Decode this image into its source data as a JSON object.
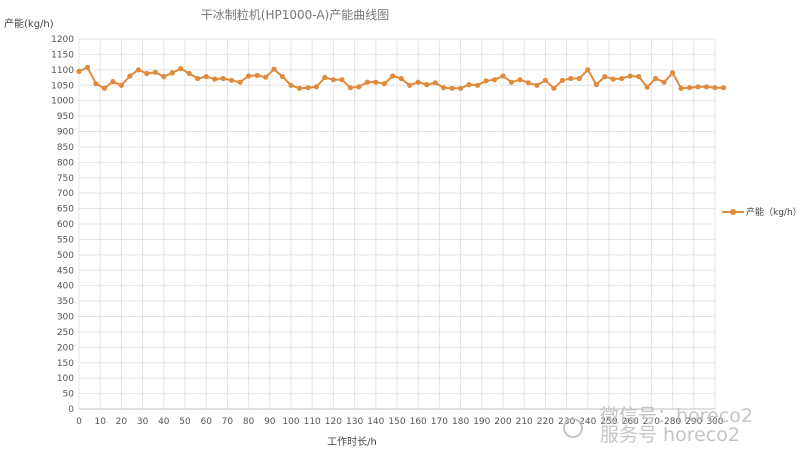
{
  "chart_data": {
    "type": "line",
    "title": "干冰制粒机(HP1000-A)产能曲线图",
    "ylabel": "产能(kg/h)",
    "xlabel": "工作时长/h",
    "xlim": [
      0,
      300
    ],
    "ylim": [
      0,
      1200
    ],
    "x_ticks": [
      0,
      10,
      20,
      30,
      40,
      50,
      60,
      70,
      80,
      90,
      100,
      110,
      120,
      130,
      140,
      150,
      160,
      170,
      180,
      190,
      200,
      210,
      220,
      230,
      240,
      250,
      260,
      270,
      280,
      290,
      300
    ],
    "y_ticks": [
      0,
      50,
      100,
      150,
      200,
      250,
      300,
      350,
      400,
      450,
      500,
      550,
      600,
      650,
      700,
      750,
      800,
      850,
      900,
      950,
      1000,
      1050,
      1100,
      1150,
      1200
    ],
    "grid": true,
    "legend_position": "right",
    "series": [
      {
        "name": "产能（kg/h）",
        "color": "#e08a3c",
        "x": [
          0,
          4,
          8,
          12,
          16,
          20,
          24,
          28,
          32,
          36,
          40,
          44,
          48,
          52,
          56,
          60,
          64,
          68,
          72,
          76,
          80,
          84,
          88,
          92,
          96,
          100,
          104,
          108,
          112,
          116,
          120,
          124,
          128,
          132,
          136,
          140,
          144,
          148,
          152,
          156,
          160,
          164,
          168,
          172,
          176,
          180,
          184,
          188,
          192,
          196,
          200,
          204,
          208,
          212,
          216,
          220,
          224,
          228,
          232,
          236,
          240,
          244,
          248,
          252,
          256,
          260,
          264,
          268,
          272,
          276,
          280,
          284,
          288,
          292,
          296,
          300,
          304
        ],
        "y": [
          1095,
          1108,
          1055,
          1040,
          1062,
          1050,
          1080,
          1100,
          1088,
          1092,
          1078,
          1090,
          1104,
          1088,
          1072,
          1078,
          1070,
          1072,
          1066,
          1060,
          1080,
          1082,
          1076,
          1102,
          1078,
          1050,
          1040,
          1042,
          1045,
          1075,
          1068,
          1068,
          1042,
          1045,
          1060,
          1060,
          1055,
          1080,
          1072,
          1050,
          1060,
          1052,
          1058,
          1042,
          1040,
          1040,
          1052,
          1050,
          1064,
          1068,
          1080,
          1060,
          1068,
          1058,
          1050,
          1066,
          1040,
          1066,
          1072,
          1072,
          1100,
          1052,
          1078,
          1070,
          1072,
          1080,
          1078,
          1044,
          1072,
          1060,
          1090,
          1040,
          1042,
          1045,
          1045,
          1042,
          1042
        ]
      }
    ]
  },
  "watermark": {
    "text": "服务号 horeco2",
    "text_top": "微信号：horeco2"
  }
}
